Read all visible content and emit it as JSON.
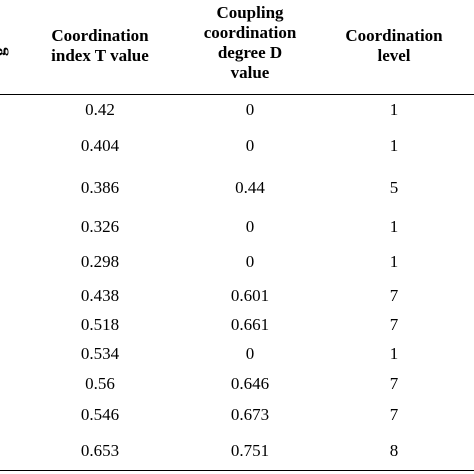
{
  "table": {
    "cut_column_header": "g",
    "headers": [
      [
        "Coordination",
        "index T value"
      ],
      [
        "Coupling",
        "coordination",
        "degree D",
        "value"
      ],
      [
        "Coordination",
        "level"
      ]
    ],
    "rows": [
      {
        "t": "0.42",
        "d": "0",
        "level": "1"
      },
      {
        "t": "0.404",
        "d": "0",
        "level": "1"
      },
      {
        "t": "0.386",
        "d": "0.44",
        "level": "5"
      },
      {
        "t": "0.326",
        "d": "0",
        "level": "1"
      },
      {
        "t": "0.298",
        "d": "0",
        "level": "1"
      },
      {
        "t": "0.438",
        "d": "0.601",
        "level": "7"
      },
      {
        "t": "0.518",
        "d": "0.661",
        "level": "7"
      },
      {
        "t": "0.534",
        "d": "0",
        "level": "1"
      },
      {
        "t": "0.56",
        "d": "0.646",
        "level": "7"
      },
      {
        "t": "0.546",
        "d": "0.673",
        "level": "7"
      },
      {
        "t": "0.653",
        "d": "0.751",
        "level": "8"
      }
    ]
  }
}
